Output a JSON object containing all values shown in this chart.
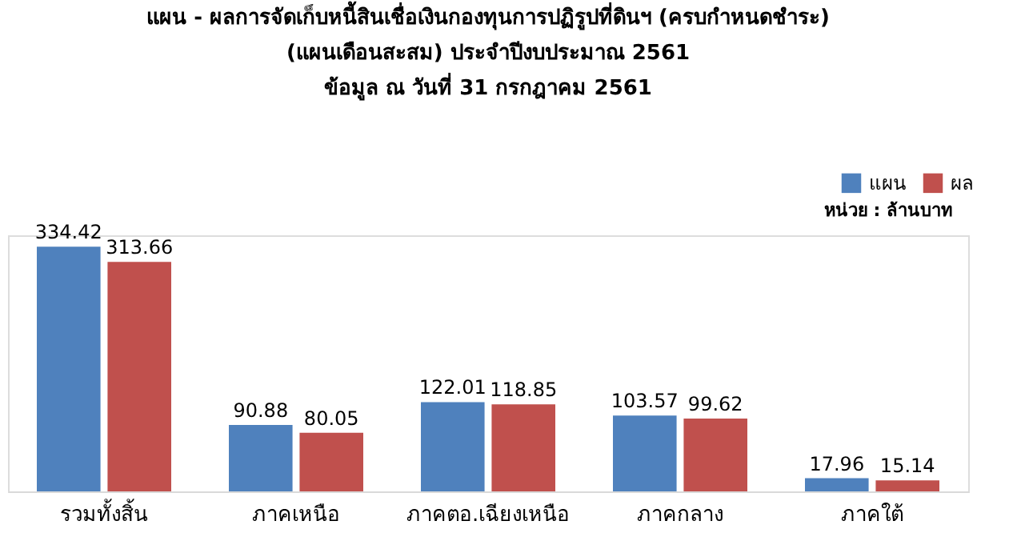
{
  "chart_data": {
    "type": "bar",
    "title": [
      "แผน - ผลการจัดเก็บหนี้สินเชื่อเงินกองทุนการปฏิรูปที่ดินฯ (ครบกำหนดชำระ)",
      "(แผนเดือนสะสม)  ประจำปีงบประมาณ 2561",
      "ข้อมูล ณ วันที่ 31 กรกฎาคม 2561"
    ],
    "categories": [
      "รวมทั้งสิ้น",
      "ภาคเหนือ",
      "ภาคตอ.เฉียงเหนือ",
      "ภาคกลาง",
      "ภาคใต้"
    ],
    "series": [
      {
        "name": "แผน",
        "color": "#4f81bd",
        "values": [
          334.42,
          90.88,
          122.01,
          103.57,
          17.96
        ]
      },
      {
        "name": "ผล",
        "color": "#c0504d",
        "values": [
          313.66,
          80.05,
          118.85,
          99.62,
          15.14
        ]
      }
    ],
    "annotations": [
      "หน่วย : ล้านบาท"
    ],
    "data_labels": true,
    "legend": "top right",
    "tick_labels": "x",
    "grid": false
  }
}
